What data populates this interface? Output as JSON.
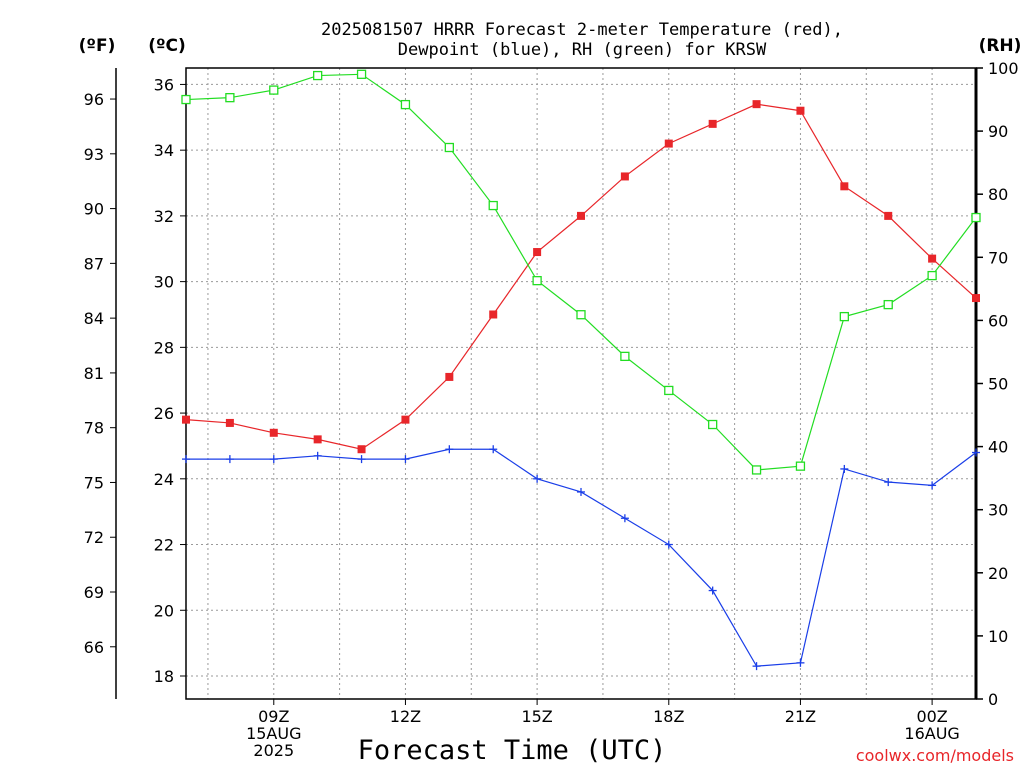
{
  "chart_data": {
    "type": "line",
    "title_line1": "2025081507 HRRR Forecast 2-meter Temperature (red),",
    "title_line2": "Dewpoint (blue), RH (green) for KRSW",
    "xlabel": "Forecast Time (UTC)",
    "credit": "coolwx.com/models",
    "units": {
      "fahrenheit": "(ºF)",
      "celsius": "(ºC)",
      "rh": "(RH)"
    },
    "x_hours_utc": [
      7,
      8,
      9,
      10,
      11,
      12,
      13,
      14,
      15,
      16,
      17,
      18,
      19,
      20,
      21,
      22,
      23,
      24,
      25
    ],
    "x_tick_labels": [
      {
        "hour": 9,
        "lines": [
          "09Z",
          "15AUG",
          "2025"
        ]
      },
      {
        "hour": 12,
        "lines": [
          "12Z"
        ]
      },
      {
        "hour": 15,
        "lines": [
          "15Z"
        ]
      },
      {
        "hour": 18,
        "lines": [
          "18Z"
        ]
      },
      {
        "hour": 21,
        "lines": [
          "21Z"
        ]
      },
      {
        "hour": 24,
        "lines": [
          "00Z",
          "16AUG"
        ]
      }
    ],
    "celsius_ylim": [
      17.3,
      36.5
    ],
    "celsius_ticks": [
      "18",
      "20",
      "22",
      "24",
      "26",
      "28",
      "30",
      "32",
      "34",
      "36"
    ],
    "fahrenheit_ticks": [
      "66",
      "69",
      "72",
      "75",
      "78",
      "81",
      "84",
      "87",
      "90",
      "93",
      "96"
    ],
    "rh_ylim": [
      0,
      100
    ],
    "rh_ticks": [
      "0",
      "10",
      "20",
      "30",
      "40",
      "50",
      "60",
      "70",
      "80",
      "90",
      "100"
    ],
    "grid": true,
    "series": [
      {
        "name": "Temperature",
        "color": "#e8262a",
        "marker": "filled-square",
        "axis": "celsius",
        "values": [
          25.8,
          25.7,
          25.4,
          25.2,
          24.9,
          25.8,
          27.1,
          29.0,
          30.9,
          32.0,
          33.2,
          34.2,
          34.8,
          35.4,
          35.2,
          32.9,
          32.0,
          30.7,
          29.5
        ]
      },
      {
        "name": "Dewpoint",
        "color": "#1a3ee8",
        "marker": "plus",
        "axis": "celsius",
        "values": [
          24.6,
          24.6,
          24.6,
          24.7,
          24.6,
          24.6,
          24.9,
          24.9,
          24.0,
          23.6,
          22.8,
          22.0,
          20.6,
          18.3,
          18.4,
          24.3,
          23.9,
          23.8,
          24.8
        ]
      },
      {
        "name": "RH",
        "color": "#22dd22",
        "marker": "open-square",
        "axis": "rh",
        "values": [
          95,
          95.3,
          96.5,
          98.8,
          99,
          94.2,
          87.4,
          78.2,
          66.3,
          60.9,
          54.3,
          48.9,
          43.5,
          36.3,
          36.9,
          60.6,
          62.5,
          67.1,
          76.3
        ]
      }
    ]
  }
}
